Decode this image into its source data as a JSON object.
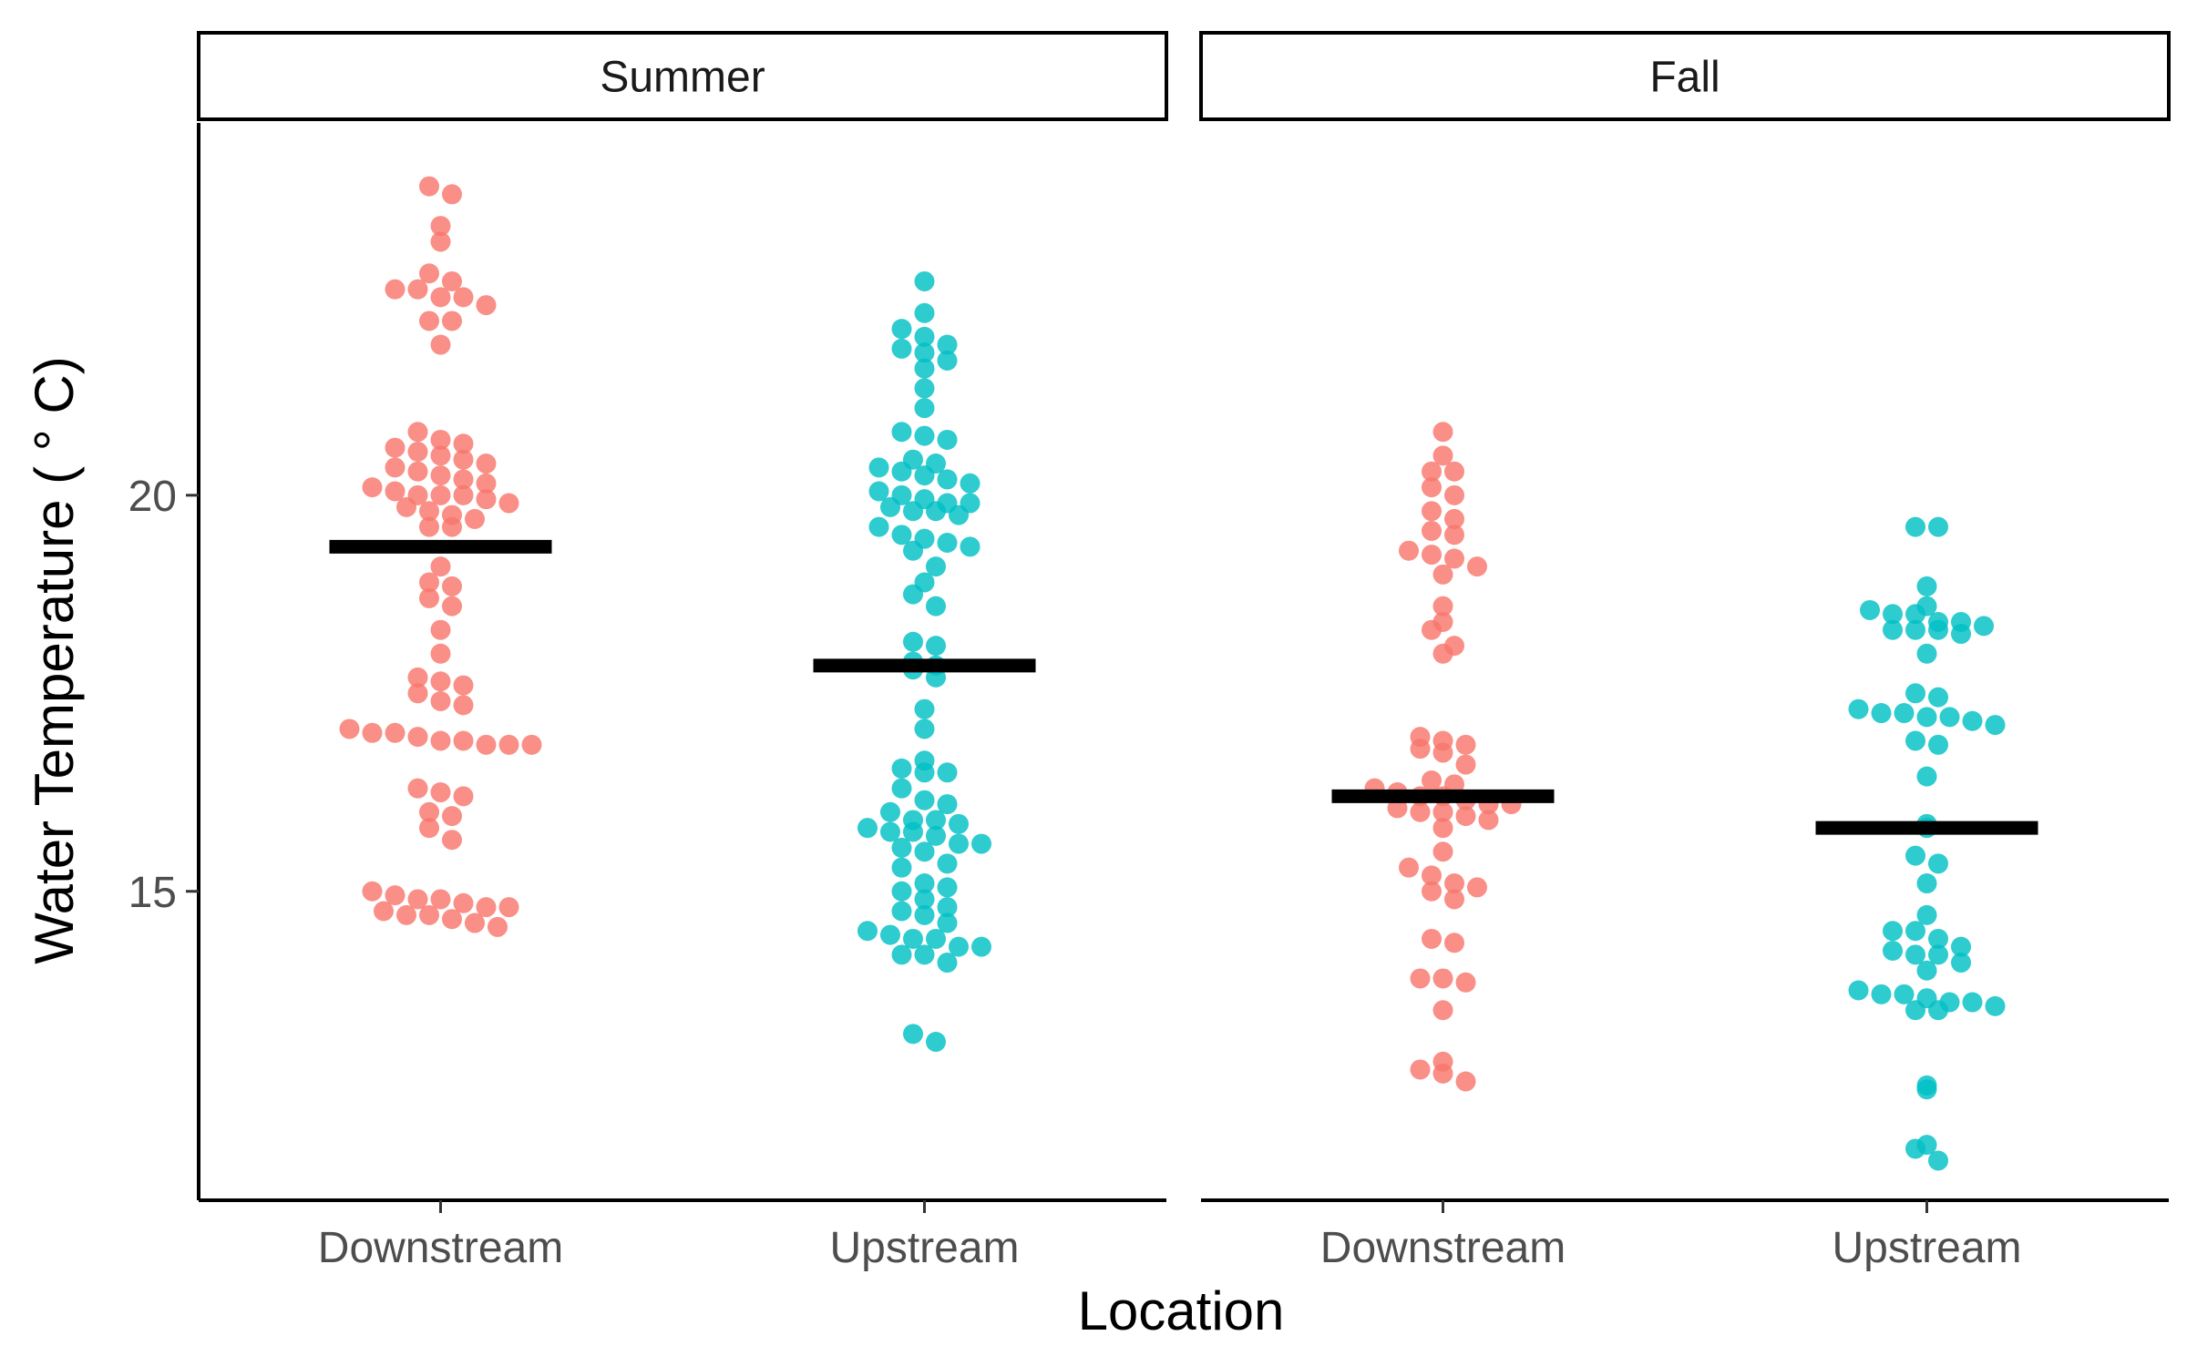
{
  "chart_data": {
    "type": "scatter",
    "xlabel": "Location",
    "ylabel": "Water Temperature ( ° C)",
    "ylim": [
      11.1,
      24.7
    ],
    "yticks": [
      15,
      20
    ],
    "grid": false,
    "legend": "none",
    "categories": [
      "Downstream",
      "Upstream"
    ],
    "category_colors": {
      "Downstream": "#F8766D",
      "Upstream": "#00BFC4"
    },
    "mean_line_color": "#000000",
    "facets": [
      {
        "label": "Summer",
        "groups": [
          {
            "category": "Downstream",
            "mean": 19.35,
            "values": [
              23.9,
              23.8,
              23.4,
              23.2,
              22.8,
              22.7,
              22.6,
              22.6,
              22.5,
              22.5,
              22.4,
              22.2,
              22.2,
              21.9,
              20.8,
              20.7,
              20.65,
              20.6,
              20.55,
              20.5,
              20.45,
              20.4,
              20.35,
              20.3,
              20.25,
              20.2,
              20.15,
              20.1,
              20.05,
              20.0,
              20.0,
              20.0,
              19.95,
              19.9,
              19.85,
              19.8,
              19.75,
              19.7,
              19.6,
              19.6,
              19.1,
              18.9,
              18.85,
              18.7,
              18.6,
              18.3,
              18.0,
              17.7,
              17.65,
              17.6,
              17.5,
              17.4,
              17.35,
              17.05,
              17.0,
              17.0,
              16.95,
              16.9,
              16.9,
              16.85,
              16.85,
              16.85,
              16.3,
              16.25,
              16.2,
              16.0,
              15.95,
              15.8,
              15.65,
              15.0,
              14.95,
              14.9,
              14.9,
              14.85,
              14.8,
              14.8,
              14.75,
              14.7,
              14.7,
              14.65,
              14.6,
              14.55
            ]
          },
          {
            "category": "Upstream",
            "mean": 17.85,
            "values": [
              22.7,
              22.3,
              22.1,
              22.0,
              21.9,
              21.85,
              21.8,
              21.7,
              21.6,
              21.35,
              21.1,
              20.8,
              20.75,
              20.7,
              20.45,
              20.4,
              20.35,
              20.3,
              20.25,
              20.2,
              20.15,
              20.05,
              20.0,
              19.95,
              19.9,
              19.9,
              19.85,
              19.8,
              19.8,
              19.75,
              19.6,
              19.5,
              19.45,
              19.4,
              19.35,
              19.3,
              19.1,
              18.9,
              18.75,
              18.6,
              18.15,
              18.1,
              17.9,
              17.85,
              17.8,
              17.7,
              17.3,
              17.05,
              16.65,
              16.55,
              16.5,
              16.5,
              16.3,
              16.15,
              16.1,
              16.0,
              15.9,
              15.9,
              15.85,
              15.8,
              15.75,
              15.75,
              15.7,
              15.6,
              15.6,
              15.55,
              15.5,
              15.35,
              15.3,
              15.1,
              15.05,
              15.0,
              14.9,
              14.8,
              14.75,
              14.7,
              14.6,
              14.5,
              14.45,
              14.4,
              14.4,
              14.3,
              14.3,
              14.2,
              14.2,
              14.1,
              13.2,
              13.1
            ]
          }
        ]
      },
      {
        "label": "Fall",
        "groups": [
          {
            "category": "Downstream",
            "mean": 16.2,
            "values": [
              20.8,
              20.5,
              20.3,
              20.3,
              20.1,
              20.0,
              19.8,
              19.7,
              19.55,
              19.5,
              19.3,
              19.25,
              19.2,
              19.1,
              19.0,
              18.6,
              18.4,
              18.3,
              18.1,
              18.0,
              16.95,
              16.9,
              16.85,
              16.8,
              16.75,
              16.6,
              16.4,
              16.35,
              16.3,
              16.25,
              16.2,
              16.2,
              16.15,
              16.1,
              16.1,
              16.05,
              16.0,
              16.0,
              15.95,
              15.9,
              15.8,
              15.5,
              15.3,
              15.2,
              15.1,
              15.05,
              15.0,
              14.9,
              14.4,
              14.35,
              13.9,
              13.9,
              13.85,
              13.5,
              12.85,
              12.75,
              12.7,
              12.6
            ]
          },
          {
            "category": "Upstream",
            "mean": 15.8,
            "values": [
              19.6,
              19.6,
              18.85,
              18.6,
              18.55,
              18.5,
              18.5,
              18.4,
              18.4,
              18.35,
              18.3,
              18.3,
              18.3,
              18.25,
              18.0,
              17.5,
              17.45,
              17.3,
              17.25,
              17.25,
              17.2,
              17.2,
              17.15,
              17.1,
              16.9,
              16.85,
              16.45,
              15.85,
              15.8,
              15.45,
              15.35,
              15.1,
              14.7,
              14.5,
              14.5,
              14.4,
              14.3,
              14.25,
              14.2,
              14.2,
              14.1,
              14.0,
              13.75,
              13.7,
              13.7,
              13.65,
              13.6,
              13.6,
              13.55,
              13.5,
              13.5,
              12.55,
              12.5,
              11.8,
              11.75,
              11.6
            ]
          }
        ]
      }
    ]
  }
}
